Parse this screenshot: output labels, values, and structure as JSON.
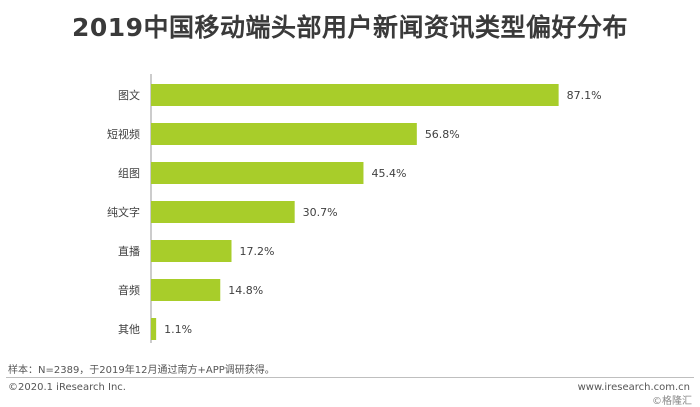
{
  "title": "2019中国移动端头部用户新闻资讯类型偏好分布",
  "chart_data": {
    "type": "bar",
    "orientation": "horizontal",
    "categories": [
      "图文",
      "短视频",
      "组图",
      "纯文字",
      "直播",
      "音频",
      "其他"
    ],
    "values": [
      87.1,
      56.8,
      45.4,
      30.7,
      17.2,
      14.8,
      1.1
    ],
    "value_labels": [
      "87.1%",
      "56.8%",
      "45.4%",
      "30.7%",
      "17.2%",
      "14.8%",
      "1.1%"
    ],
    "xlim": [
      0,
      100
    ],
    "bar_color": "#a8cd2a",
    "grid": false,
    "legend": false
  },
  "footer": {
    "note": "样本：N=2389，于2019年12月通过南方+APP调研获得。",
    "copyright": "©2020.1 iResearch Inc.",
    "website": "www.iresearch.com.cn",
    "watermark": "©格隆汇"
  }
}
